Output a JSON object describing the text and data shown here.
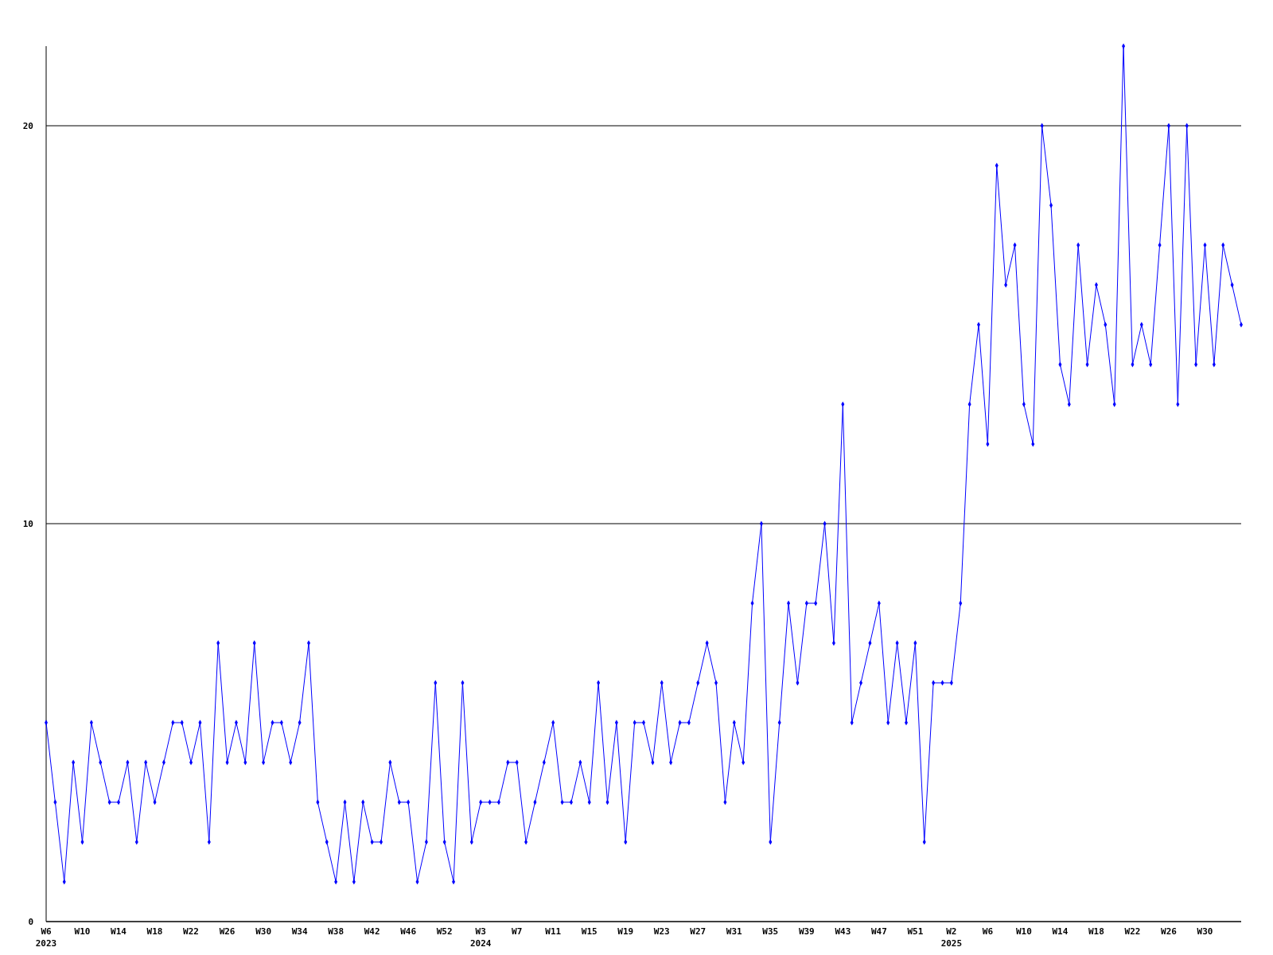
{
  "chart_data": {
    "type": "line",
    "categories": [
      "W6\n2023",
      null,
      null,
      null,
      "W10",
      null,
      null,
      null,
      "W14",
      null,
      null,
      null,
      "W18",
      null,
      null,
      null,
      "W22",
      null,
      null,
      null,
      "W26",
      null,
      null,
      null,
      "W30",
      null,
      null,
      null,
      "W34",
      null,
      null,
      null,
      "W38",
      null,
      null,
      null,
      "W42",
      null,
      null,
      null,
      "W46",
      null,
      null,
      null,
      "W52",
      null,
      null,
      null,
      "W3\n2024",
      null,
      null,
      null,
      "W7",
      null,
      null,
      null,
      "W11",
      null,
      null,
      null,
      "W15",
      null,
      null,
      null,
      "W19",
      null,
      null,
      null,
      "W23",
      null,
      null,
      null,
      "W27",
      null,
      null,
      null,
      "W31",
      null,
      null,
      null,
      "W35",
      null,
      null,
      null,
      "W39",
      null,
      null,
      null,
      "W43",
      null,
      null,
      null,
      "W47",
      null,
      null,
      null,
      "W51",
      null,
      null,
      null,
      "W2\n2025",
      null,
      null,
      null,
      "W6",
      null,
      null,
      null,
      "W10",
      null,
      null,
      null,
      "W14",
      null,
      null,
      null,
      "W18",
      null,
      null,
      null,
      "W22",
      null,
      null,
      null,
      "W26",
      null,
      null,
      null,
      "W30",
      null,
      null,
      null,
      null
    ],
    "series": [
      {
        "color": "#0000ff",
        "values": [
          5,
          3,
          1,
          4,
          2,
          5,
          4,
          3,
          3,
          4,
          2,
          4,
          3,
          4,
          5,
          5,
          4,
          5,
          2,
          7,
          4,
          5,
          4,
          7,
          4,
          5,
          5,
          4,
          5,
          7,
          3,
          2,
          1,
          3,
          1,
          3,
          2,
          2,
          4,
          3,
          3,
          1,
          2,
          6,
          2,
          1,
          6,
          2,
          3,
          3,
          3,
          4,
          4,
          2,
          3,
          4,
          5,
          3,
          3,
          4,
          3,
          6,
          3,
          5,
          2,
          5,
          5,
          4,
          6,
          4,
          5,
          5,
          6,
          7,
          6,
          3,
          5,
          4,
          8,
          10,
          2,
          5,
          8,
          6,
          8,
          8,
          10,
          7,
          13,
          5,
          6,
          7,
          8,
          5,
          7,
          5,
          7,
          2,
          6,
          6,
          6,
          8,
          13,
          15,
          12,
          19,
          16,
          17,
          13,
          12,
          20,
          18,
          14,
          13,
          17,
          14,
          16,
          15,
          13,
          22,
          14,
          15,
          14,
          17,
          20,
          13,
          20,
          14,
          17,
          14,
          17,
          16,
          15
        ]
      }
    ],
    "ylim": [
      0,
      22
    ],
    "yticks": [
      0,
      10,
      20
    ],
    "grid": "y",
    "marker": "diamond",
    "line_style": "solid"
  }
}
